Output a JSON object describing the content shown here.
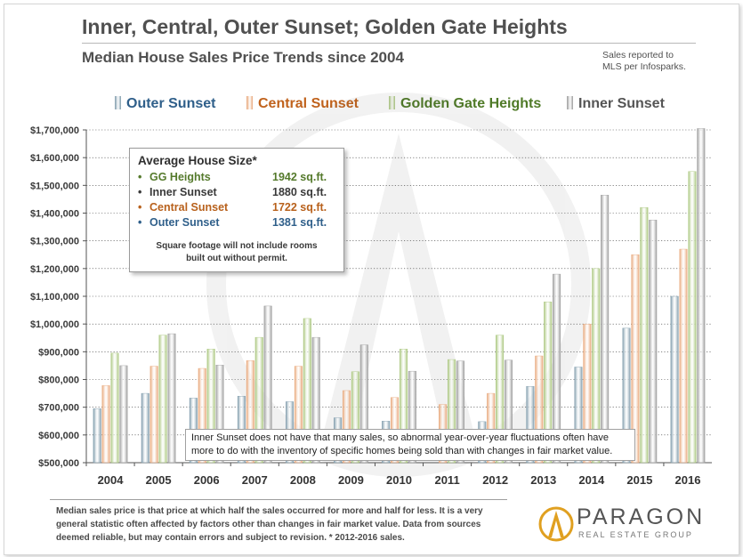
{
  "header": {
    "title": "Inner, Central, Outer Sunset; Golden Gate Heights",
    "subtitle": "Median House Sales Price Trends since 2004",
    "note_line1": "Sales reported to",
    "note_line2": "MLS per Infosparks."
  },
  "infobox": {
    "title": "Average  House Size*",
    "rows": [
      {
        "bullet": "•",
        "label": "GG Heights",
        "value": "1942 sq.ft.",
        "color": "#557a2c"
      },
      {
        "bullet": "•",
        "label": "Inner Sunset",
        "value": "1880 sq.ft.",
        "color": "#3a3a3a"
      },
      {
        "bullet": "•",
        "label": "Central Sunset",
        "value": "1722 sq.ft.",
        "color": "#b8611c"
      },
      {
        "bullet": "•",
        "label": "Outer Sunset",
        "value": "1381 sq.ft.",
        "color": "#2f5f8a"
      }
    ],
    "foot_line1": "Square footage will not include rooms",
    "foot_line2": "built out without permit."
  },
  "annotation": "Inner Sunset does not have that many sales, so abnormal year-over-year fluctuations often have more to do with the inventory  of specific homes being sold than with changes in fair market value.",
  "footnote": "Median sales price is that price at which half the sales occurred for more and half for less. It is a very general statistic often affected by factors other than changes in fair market value. Data from sources deemed reliable, but may contain errors and subject to revision. * 2012-2016 sales.",
  "brand": {
    "name": "PARAGON",
    "sub": "REAL ESTATE GROUP",
    "accent": "#e0a020"
  },
  "chart_data": {
    "type": "bar",
    "title": "Median House Sales Price Trends since 2004",
    "categories": [
      "2004",
      "2005",
      "2006",
      "2007",
      "2008",
      "2009",
      "2010",
      "2011",
      "2012",
      "2013",
      "2014",
      "2015",
      "2016"
    ],
    "ylim": [
      500000,
      1700000
    ],
    "yticks": [
      500000,
      600000,
      700000,
      800000,
      900000,
      1000000,
      1100000,
      1200000,
      1300000,
      1400000,
      1500000,
      1600000,
      1700000
    ],
    "ytick_labels": [
      "$500,000",
      "$600,000",
      "$700,000",
      "$800,000",
      "$900,000",
      "$1,000,000",
      "$1,100,000",
      "$1,200,000",
      "$1,300,000",
      "$1,400,000",
      "$1,500,000",
      "$1,600,000",
      "$1,700,000"
    ],
    "grid": true,
    "legend_position": "top",
    "series": [
      {
        "name": "Outer Sunset",
        "color": "#7f9bab",
        "text_color": "#2f5f8a",
        "values": [
          695000,
          750000,
          733000,
          740000,
          720000,
          662000,
          650000,
          null,
          648000,
          775000,
          845000,
          985000,
          1100000
        ]
      },
      {
        "name": "Central Sunset",
        "color": "#e8a678",
        "text_color": "#c0621c",
        "values": [
          778000,
          848000,
          840000,
          868000,
          848000,
          760000,
          735000,
          710000,
          750000,
          885000,
          1000000,
          1250000,
          1270000
        ]
      },
      {
        "name": "Golden Gate Heights",
        "color": "#a9c67c",
        "text_color": "#4f7a27",
        "values": [
          895000,
          960000,
          910000,
          952000,
          1020000,
          828000,
          910000,
          872000,
          960000,
          1080000,
          1200000,
          1420000,
          1550000
        ]
      },
      {
        "name": "Inner Sunset",
        "color": "#9c9c9c",
        "text_color": "#555555",
        "values": [
          850000,
          965000,
          852000,
          1065000,
          952000,
          925000,
          830000,
          867000,
          870000,
          1180000,
          1465000,
          1375000,
          1705000
        ]
      }
    ]
  }
}
